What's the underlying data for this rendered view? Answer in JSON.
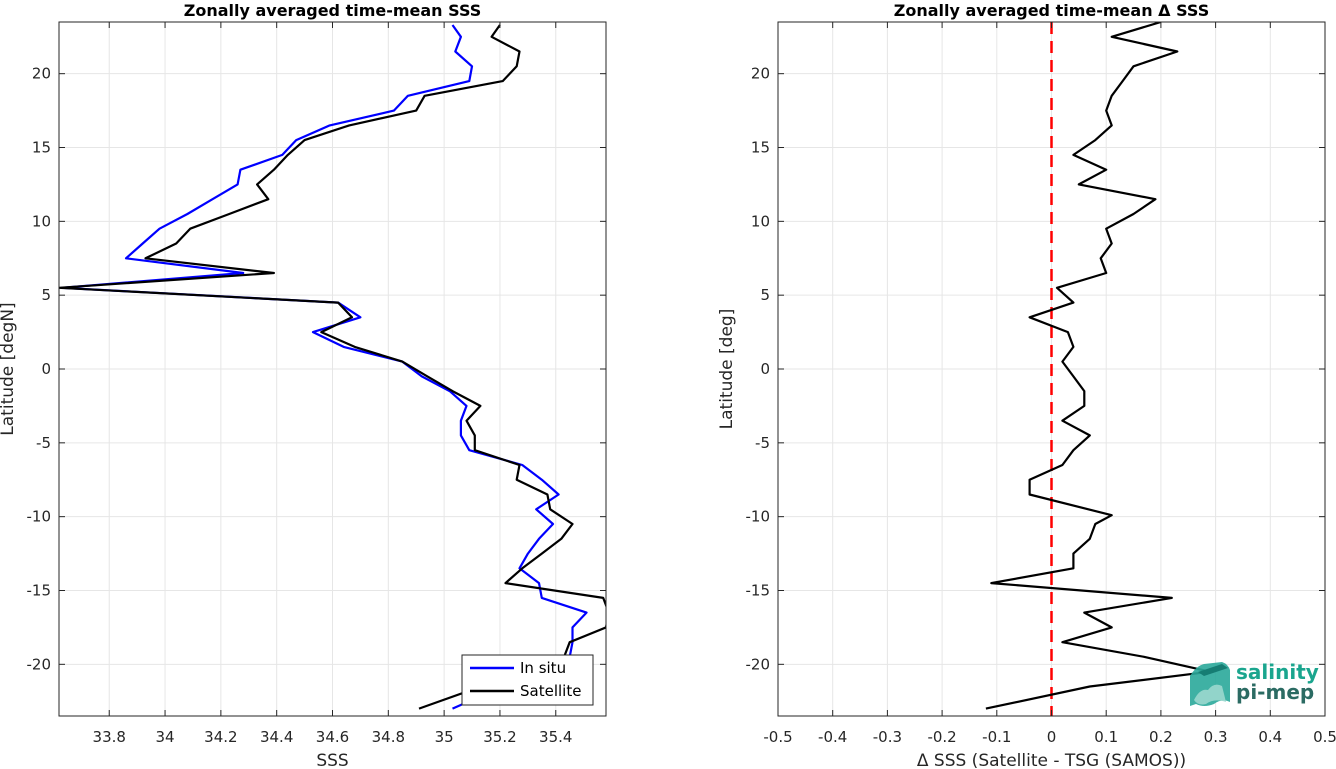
{
  "chart_data": [
    {
      "type": "line",
      "title": "Zonally averaged time-mean SSS",
      "xlabel": "SSS",
      "ylabel": "Latitude [degN]",
      "xlim": [
        33.62,
        35.58
      ],
      "ylim": [
        -23.5,
        23.5
      ],
      "xticks": [
        33.8,
        34,
        34.2,
        34.4,
        34.6,
        34.8,
        35,
        35.2,
        35.4
      ],
      "xtick_labels": [
        "33.8",
        "34",
        "34.2",
        "34.4",
        "34.6",
        "34.8",
        "35",
        "35.2",
        "35.4"
      ],
      "yticks": [
        -20,
        -15,
        -10,
        -5,
        0,
        5,
        10,
        15,
        20
      ],
      "ytick_labels": [
        "-20",
        "-15",
        "-10",
        "-5",
        "0",
        "5",
        "10",
        "15",
        "20"
      ],
      "grid": true,
      "legend_position": "bottom-right",
      "series": [
        {
          "name": "In situ",
          "color": "#0000ff",
          "points": [
            [
              35.03,
              -23.0
            ],
            [
              35.45,
              -19.5
            ],
            [
              35.46,
              -18.5
            ],
            [
              35.46,
              -17.5
            ],
            [
              35.51,
              -16.5
            ],
            [
              35.35,
              -15.5
            ],
            [
              35.34,
              -14.5
            ],
            [
              35.27,
              -13.5
            ],
            [
              35.3,
              -12.5
            ],
            [
              35.34,
              -11.5
            ],
            [
              35.39,
              -10.5
            ],
            [
              35.33,
              -9.5
            ],
            [
              35.41,
              -8.5
            ],
            [
              35.35,
              -7.5
            ],
            [
              35.28,
              -6.5
            ],
            [
              35.09,
              -5.5
            ],
            [
              35.06,
              -4.5
            ],
            [
              35.06,
              -3.5
            ],
            [
              35.08,
              -2.5
            ],
            [
              35.02,
              -1.5
            ],
            [
              34.92,
              -0.5
            ],
            [
              34.85,
              0.5
            ],
            [
              34.64,
              1.5
            ],
            [
              34.53,
              2.5
            ],
            [
              34.7,
              3.5
            ],
            [
              34.62,
              4.5
            ],
            [
              33.63,
              5.5
            ],
            [
              34.28,
              6.5
            ],
            [
              33.86,
              7.5
            ],
            [
              33.92,
              8.5
            ],
            [
              33.98,
              9.5
            ],
            [
              34.08,
              10.5
            ],
            [
              34.17,
              11.5
            ],
            [
              34.26,
              12.5
            ],
            [
              34.27,
              13.5
            ],
            [
              34.42,
              14.5
            ],
            [
              34.47,
              15.5
            ],
            [
              34.59,
              16.5
            ],
            [
              34.82,
              17.5
            ],
            [
              34.87,
              18.5
            ],
            [
              35.09,
              19.5
            ],
            [
              35.1,
              20.5
            ],
            [
              35.04,
              21.5
            ],
            [
              35.06,
              22.5
            ],
            [
              35.03,
              23.3
            ]
          ]
        },
        {
          "name": "Satellite",
          "color": "#000000",
          "points": [
            [
              34.91,
              -23.0
            ],
            [
              35.43,
              -19.5
            ],
            [
              35.45,
              -18.5
            ],
            [
              35.58,
              -17.5
            ],
            [
              35.59,
              -16.5
            ],
            [
              35.57,
              -15.5
            ],
            [
              35.22,
              -14.5
            ],
            [
              35.28,
              -13.5
            ],
            [
              35.35,
              -12.5
            ],
            [
              35.42,
              -11.5
            ],
            [
              35.46,
              -10.5
            ],
            [
              35.38,
              -9.5
            ],
            [
              35.37,
              -8.5
            ],
            [
              35.26,
              -7.5
            ],
            [
              35.27,
              -6.5
            ],
            [
              35.11,
              -5.5
            ],
            [
              35.11,
              -4.5
            ],
            [
              35.08,
              -3.5
            ],
            [
              35.13,
              -2.5
            ],
            [
              35.03,
              -1.5
            ],
            [
              34.94,
              -0.5
            ],
            [
              34.85,
              0.5
            ],
            [
              34.68,
              1.5
            ],
            [
              34.56,
              2.5
            ],
            [
              34.67,
              3.5
            ],
            [
              34.62,
              4.5
            ],
            [
              33.62,
              5.5
            ],
            [
              34.39,
              6.5
            ],
            [
              33.93,
              7.5
            ],
            [
              34.04,
              8.5
            ],
            [
              34.09,
              9.5
            ],
            [
              34.23,
              10.5
            ],
            [
              34.37,
              11.5
            ],
            [
              34.33,
              12.5
            ],
            [
              34.39,
              13.5
            ],
            [
              34.44,
              14.5
            ],
            [
              34.5,
              15.5
            ],
            [
              34.66,
              16.5
            ],
            [
              34.9,
              17.5
            ],
            [
              34.93,
              18.5
            ],
            [
              35.21,
              19.5
            ],
            [
              35.26,
              20.5
            ],
            [
              35.27,
              21.5
            ],
            [
              35.17,
              22.5
            ],
            [
              35.2,
              23.3
            ]
          ]
        }
      ]
    },
    {
      "type": "line",
      "title": "Zonally averaged time-mean Δ SSS",
      "xlabel": "Δ SSS (Satellite - TSG (SAMOS))",
      "ylabel": "Latitude [deg]",
      "xlim": [
        -0.5,
        0.5
      ],
      "ylim": [
        -23.5,
        23.5
      ],
      "xticks": [
        -0.5,
        -0.4,
        -0.3,
        -0.2,
        -0.1,
        0,
        0.1,
        0.2,
        0.3,
        0.4,
        0.5
      ],
      "xtick_labels": [
        "-0.5",
        "-0.4",
        "-0.3",
        "-0.2",
        "-0.1",
        "0",
        "0.1",
        "0.2",
        "0.3",
        "0.4",
        "0.5"
      ],
      "yticks": [
        -20,
        -15,
        -10,
        -5,
        0,
        5,
        10,
        15,
        20
      ],
      "ytick_labels": [
        "-20",
        "-15",
        "-10",
        "-5",
        "0",
        "5",
        "10",
        "15",
        "20"
      ],
      "grid": true,
      "reference_line": {
        "x": 0,
        "color": "#ff0000",
        "style": "dashed"
      },
      "series": [
        {
          "color": "#000000",
          "points": [
            [
              -0.12,
              -23.0
            ],
            [
              0.07,
              -21.5
            ],
            [
              0.29,
              -20.5
            ],
            [
              0.17,
              -19.5
            ],
            [
              0.02,
              -18.5
            ],
            [
              0.11,
              -17.5
            ],
            [
              0.06,
              -16.5
            ],
            [
              0.22,
              -15.5
            ],
            [
              -0.11,
              -14.5
            ],
            [
              0.04,
              -13.5
            ],
            [
              0.04,
              -12.5
            ],
            [
              0.07,
              -11.5
            ],
            [
              0.08,
              -10.5
            ],
            [
              0.11,
              -9.9
            ],
            [
              -0.04,
              -8.5
            ],
            [
              -0.04,
              -7.5
            ],
            [
              0.02,
              -6.5
            ],
            [
              0.04,
              -5.5
            ],
            [
              0.07,
              -4.5
            ],
            [
              0.02,
              -3.5
            ],
            [
              0.06,
              -2.5
            ],
            [
              0.06,
              -1.5
            ],
            [
              0.04,
              -0.5
            ],
            [
              0.02,
              0.5
            ],
            [
              0.04,
              1.5
            ],
            [
              0.03,
              2.5
            ],
            [
              -0.04,
              3.5
            ],
            [
              0.04,
              4.5
            ],
            [
              0.01,
              5.5
            ],
            [
              0.1,
              6.5
            ],
            [
              0.09,
              7.5
            ],
            [
              0.11,
              8.5
            ],
            [
              0.1,
              9.5
            ],
            [
              0.15,
              10.5
            ],
            [
              0.19,
              11.5
            ],
            [
              0.05,
              12.5
            ],
            [
              0.1,
              13.5
            ],
            [
              0.04,
              14.5
            ],
            [
              0.08,
              15.5
            ],
            [
              0.11,
              16.5
            ],
            [
              0.1,
              17.5
            ],
            [
              0.11,
              18.5
            ],
            [
              0.13,
              19.5
            ],
            [
              0.15,
              20.5
            ],
            [
              0.23,
              21.5
            ],
            [
              0.11,
              22.5
            ],
            [
              0.2,
              23.5
            ]
          ]
        }
      ]
    }
  ],
  "legend": {
    "items": [
      "In situ",
      "Satellite"
    ]
  },
  "logo": {
    "line1": "salinity",
    "line2": "pi-mep",
    "color1": "#1aa58e",
    "color2": "#2b6b63"
  }
}
